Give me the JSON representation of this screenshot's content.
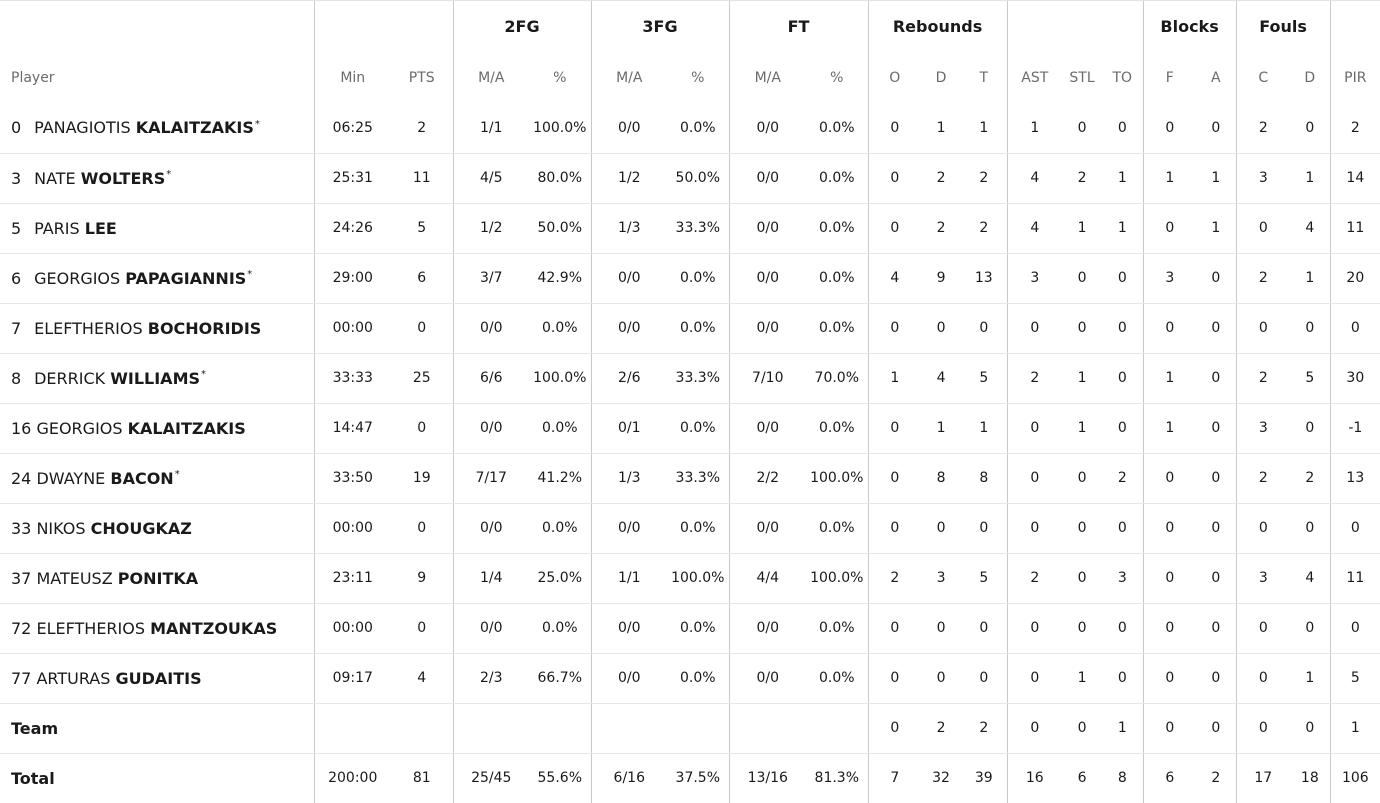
{
  "groups": {
    "fg2": "2FG",
    "fg3": "3FG",
    "ft": "FT",
    "rebounds": "Rebounds",
    "blocks": "Blocks",
    "fouls": "Fouls"
  },
  "headers": {
    "player": "Player",
    "min": "Min",
    "pts": "PTS",
    "fg2_ma": "M/A",
    "fg2_pct": "%",
    "fg3_ma": "M/A",
    "fg3_pct": "%",
    "ft_ma": "M/A",
    "ft_pct": "%",
    "reb_o": "O",
    "reb_d": "D",
    "reb_t": "T",
    "ast": "AST",
    "stl": "STL",
    "to": "TO",
    "blk_f": "F",
    "blk_a": "A",
    "foul_c": "C",
    "foul_d": "D",
    "pir": "PIR"
  },
  "players": [
    {
      "number": "0",
      "first": "PANAGIOTIS",
      "last": "KALAITZAKIS",
      "starter": "*",
      "min": "06:25",
      "pts": "2",
      "fg2_ma": "1/1",
      "fg2_pct": "100.0%",
      "fg3_ma": "0/0",
      "fg3_pct": "0.0%",
      "ft_ma": "0/0",
      "ft_pct": "0.0%",
      "reb_o": "0",
      "reb_d": "1",
      "reb_t": "1",
      "ast": "1",
      "stl": "0",
      "to": "0",
      "blk_f": "0",
      "blk_a": "0",
      "foul_c": "2",
      "foul_d": "0",
      "pir": "2"
    },
    {
      "number": "3",
      "first": "NATE",
      "last": "WOLTERS",
      "starter": "*",
      "min": "25:31",
      "pts": "11",
      "fg2_ma": "4/5",
      "fg2_pct": "80.0%",
      "fg3_ma": "1/2",
      "fg3_pct": "50.0%",
      "ft_ma": "0/0",
      "ft_pct": "0.0%",
      "reb_o": "0",
      "reb_d": "2",
      "reb_t": "2",
      "ast": "4",
      "stl": "2",
      "to": "1",
      "blk_f": "1",
      "blk_a": "1",
      "foul_c": "3",
      "foul_d": "1",
      "pir": "14"
    },
    {
      "number": "5",
      "first": "PARIS",
      "last": "LEE",
      "starter": "",
      "min": "24:26",
      "pts": "5",
      "fg2_ma": "1/2",
      "fg2_pct": "50.0%",
      "fg3_ma": "1/3",
      "fg3_pct": "33.3%",
      "ft_ma": "0/0",
      "ft_pct": "0.0%",
      "reb_o": "0",
      "reb_d": "2",
      "reb_t": "2",
      "ast": "4",
      "stl": "1",
      "to": "1",
      "blk_f": "0",
      "blk_a": "1",
      "foul_c": "0",
      "foul_d": "4",
      "pir": "11"
    },
    {
      "number": "6",
      "first": "GEORGIOS",
      "last": "PAPAGIANNIS",
      "starter": "*",
      "min": "29:00",
      "pts": "6",
      "fg2_ma": "3/7",
      "fg2_pct": "42.9%",
      "fg3_ma": "0/0",
      "fg3_pct": "0.0%",
      "ft_ma": "0/0",
      "ft_pct": "0.0%",
      "reb_o": "4",
      "reb_d": "9",
      "reb_t": "13",
      "ast": "3",
      "stl": "0",
      "to": "0",
      "blk_f": "3",
      "blk_a": "0",
      "foul_c": "2",
      "foul_d": "1",
      "pir": "20"
    },
    {
      "number": "7",
      "first": "ELEFTHERIOS",
      "last": "BOCHORIDIS",
      "starter": "",
      "min": "00:00",
      "pts": "0",
      "fg2_ma": "0/0",
      "fg2_pct": "0.0%",
      "fg3_ma": "0/0",
      "fg3_pct": "0.0%",
      "ft_ma": "0/0",
      "ft_pct": "0.0%",
      "reb_o": "0",
      "reb_d": "0",
      "reb_t": "0",
      "ast": "0",
      "stl": "0",
      "to": "0",
      "blk_f": "0",
      "blk_a": "0",
      "foul_c": "0",
      "foul_d": "0",
      "pir": "0"
    },
    {
      "number": "8",
      "first": "DERRICK",
      "last": "WILLIAMS",
      "starter": "*",
      "min": "33:33",
      "pts": "25",
      "fg2_ma": "6/6",
      "fg2_pct": "100.0%",
      "fg3_ma": "2/6",
      "fg3_pct": "33.3%",
      "ft_ma": "7/10",
      "ft_pct": "70.0%",
      "reb_o": "1",
      "reb_d": "4",
      "reb_t": "5",
      "ast": "2",
      "stl": "1",
      "to": "0",
      "blk_f": "1",
      "blk_a": "0",
      "foul_c": "2",
      "foul_d": "5",
      "pir": "30"
    },
    {
      "number": "16",
      "first": "GEORGIOS",
      "last": "KALAITZAKIS",
      "starter": "",
      "min": "14:47",
      "pts": "0",
      "fg2_ma": "0/0",
      "fg2_pct": "0.0%",
      "fg3_ma": "0/1",
      "fg3_pct": "0.0%",
      "ft_ma": "0/0",
      "ft_pct": "0.0%",
      "reb_o": "0",
      "reb_d": "1",
      "reb_t": "1",
      "ast": "0",
      "stl": "1",
      "to": "0",
      "blk_f": "1",
      "blk_a": "0",
      "foul_c": "3",
      "foul_d": "0",
      "pir": "-1"
    },
    {
      "number": "24",
      "first": "DWAYNE",
      "last": "BACON",
      "starter": "*",
      "min": "33:50",
      "pts": "19",
      "fg2_ma": "7/17",
      "fg2_pct": "41.2%",
      "fg3_ma": "1/3",
      "fg3_pct": "33.3%",
      "ft_ma": "2/2",
      "ft_pct": "100.0%",
      "reb_o": "0",
      "reb_d": "8",
      "reb_t": "8",
      "ast": "0",
      "stl": "0",
      "to": "2",
      "blk_f": "0",
      "blk_a": "0",
      "foul_c": "2",
      "foul_d": "2",
      "pir": "13"
    },
    {
      "number": "33",
      "first": "NIKOS",
      "last": "CHOUGKAZ",
      "starter": "",
      "min": "00:00",
      "pts": "0",
      "fg2_ma": "0/0",
      "fg2_pct": "0.0%",
      "fg3_ma": "0/0",
      "fg3_pct": "0.0%",
      "ft_ma": "0/0",
      "ft_pct": "0.0%",
      "reb_o": "0",
      "reb_d": "0",
      "reb_t": "0",
      "ast": "0",
      "stl": "0",
      "to": "0",
      "blk_f": "0",
      "blk_a": "0",
      "foul_c": "0",
      "foul_d": "0",
      "pir": "0"
    },
    {
      "number": "37",
      "first": "MATEUSZ",
      "last": "PONITKA",
      "starter": "",
      "min": "23:11",
      "pts": "9",
      "fg2_ma": "1/4",
      "fg2_pct": "25.0%",
      "fg3_ma": "1/1",
      "fg3_pct": "100.0%",
      "ft_ma": "4/4",
      "ft_pct": "100.0%",
      "reb_o": "2",
      "reb_d": "3",
      "reb_t": "5",
      "ast": "2",
      "stl": "0",
      "to": "3",
      "blk_f": "0",
      "blk_a": "0",
      "foul_c": "3",
      "foul_d": "4",
      "pir": "11"
    },
    {
      "number": "72",
      "first": "ELEFTHERIOS",
      "last": "MANTZOUKAS",
      "starter": "",
      "min": "00:00",
      "pts": "0",
      "fg2_ma": "0/0",
      "fg2_pct": "0.0%",
      "fg3_ma": "0/0",
      "fg3_pct": "0.0%",
      "ft_ma": "0/0",
      "ft_pct": "0.0%",
      "reb_o": "0",
      "reb_d": "0",
      "reb_t": "0",
      "ast": "0",
      "stl": "0",
      "to": "0",
      "blk_f": "0",
      "blk_a": "0",
      "foul_c": "0",
      "foul_d": "0",
      "pir": "0"
    },
    {
      "number": "77",
      "first": "ARTURAS",
      "last": "GUDAITIS",
      "starter": "",
      "min": "09:17",
      "pts": "4",
      "fg2_ma": "2/3",
      "fg2_pct": "66.7%",
      "fg3_ma": "0/0",
      "fg3_pct": "0.0%",
      "ft_ma": "0/0",
      "ft_pct": "0.0%",
      "reb_o": "0",
      "reb_d": "0",
      "reb_t": "0",
      "ast": "0",
      "stl": "1",
      "to": "0",
      "blk_f": "0",
      "blk_a": "0",
      "foul_c": "0",
      "foul_d": "1",
      "pir": "5"
    }
  ],
  "team": {
    "label": "Team",
    "min": "",
    "pts": "",
    "fg2_ma": "",
    "fg2_pct": "",
    "fg3_ma": "",
    "fg3_pct": "",
    "ft_ma": "",
    "ft_pct": "",
    "reb_o": "0",
    "reb_d": "2",
    "reb_t": "2",
    "ast": "0",
    "stl": "0",
    "to": "1",
    "blk_f": "0",
    "blk_a": "0",
    "foul_c": "0",
    "foul_d": "0",
    "pir": "1"
  },
  "total": {
    "label": "Total",
    "min": "200:00",
    "pts": "81",
    "fg2_ma": "25/45",
    "fg2_pct": "55.6%",
    "fg3_ma": "6/16",
    "fg3_pct": "37.5%",
    "ft_ma": "13/16",
    "ft_pct": "81.3%",
    "reb_o": "7",
    "reb_d": "32",
    "reb_t": "39",
    "ast": "16",
    "stl": "6",
    "to": "8",
    "blk_f": "6",
    "blk_a": "2",
    "foul_c": "17",
    "foul_d": "18",
    "pir": "106"
  }
}
